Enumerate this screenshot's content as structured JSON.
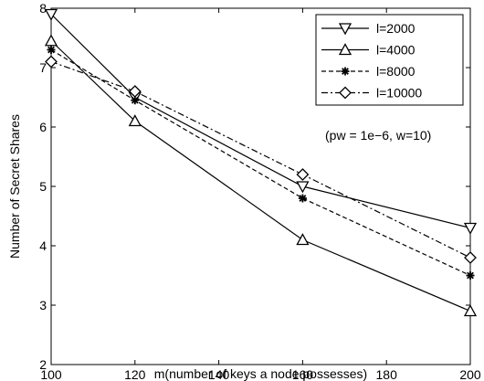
{
  "chart_data": {
    "type": "line",
    "title": "",
    "xlabel": "m(number of keys a node possesses)",
    "ylabel": "Number of Secret Shares",
    "xlim": [
      100,
      200
    ],
    "ylim": [
      2,
      8
    ],
    "xticks": [
      100,
      120,
      140,
      160,
      180,
      200
    ],
    "yticks": [
      2,
      3,
      4,
      5,
      6,
      7,
      8
    ],
    "grid": false,
    "legend_position": "top-right",
    "annotation": "(pw = 1e−6, w=10)",
    "series": [
      {
        "name": "l=2000",
        "marker": "triangle-down",
        "line_style": "solid",
        "x": [
          100,
          120,
          160,
          200
        ],
        "y": [
          7.9,
          6.5,
          5.0,
          4.3
        ]
      },
      {
        "name": "l=4000",
        "marker": "triangle-up",
        "line_style": "solid",
        "x": [
          100,
          120,
          160,
          200
        ],
        "y": [
          7.45,
          6.1,
          4.1,
          2.9
        ]
      },
      {
        "name": "l=8000",
        "marker": "star",
        "line_style": "dashed",
        "x": [
          100,
          120,
          160,
          200
        ],
        "y": [
          7.3,
          6.45,
          4.8,
          3.5
        ]
      },
      {
        "name": "l=10000",
        "marker": "diamond",
        "line_style": "dashdot",
        "x": [
          100,
          120,
          160,
          200
        ],
        "y": [
          7.1,
          6.6,
          5.2,
          3.8
        ]
      }
    ]
  }
}
